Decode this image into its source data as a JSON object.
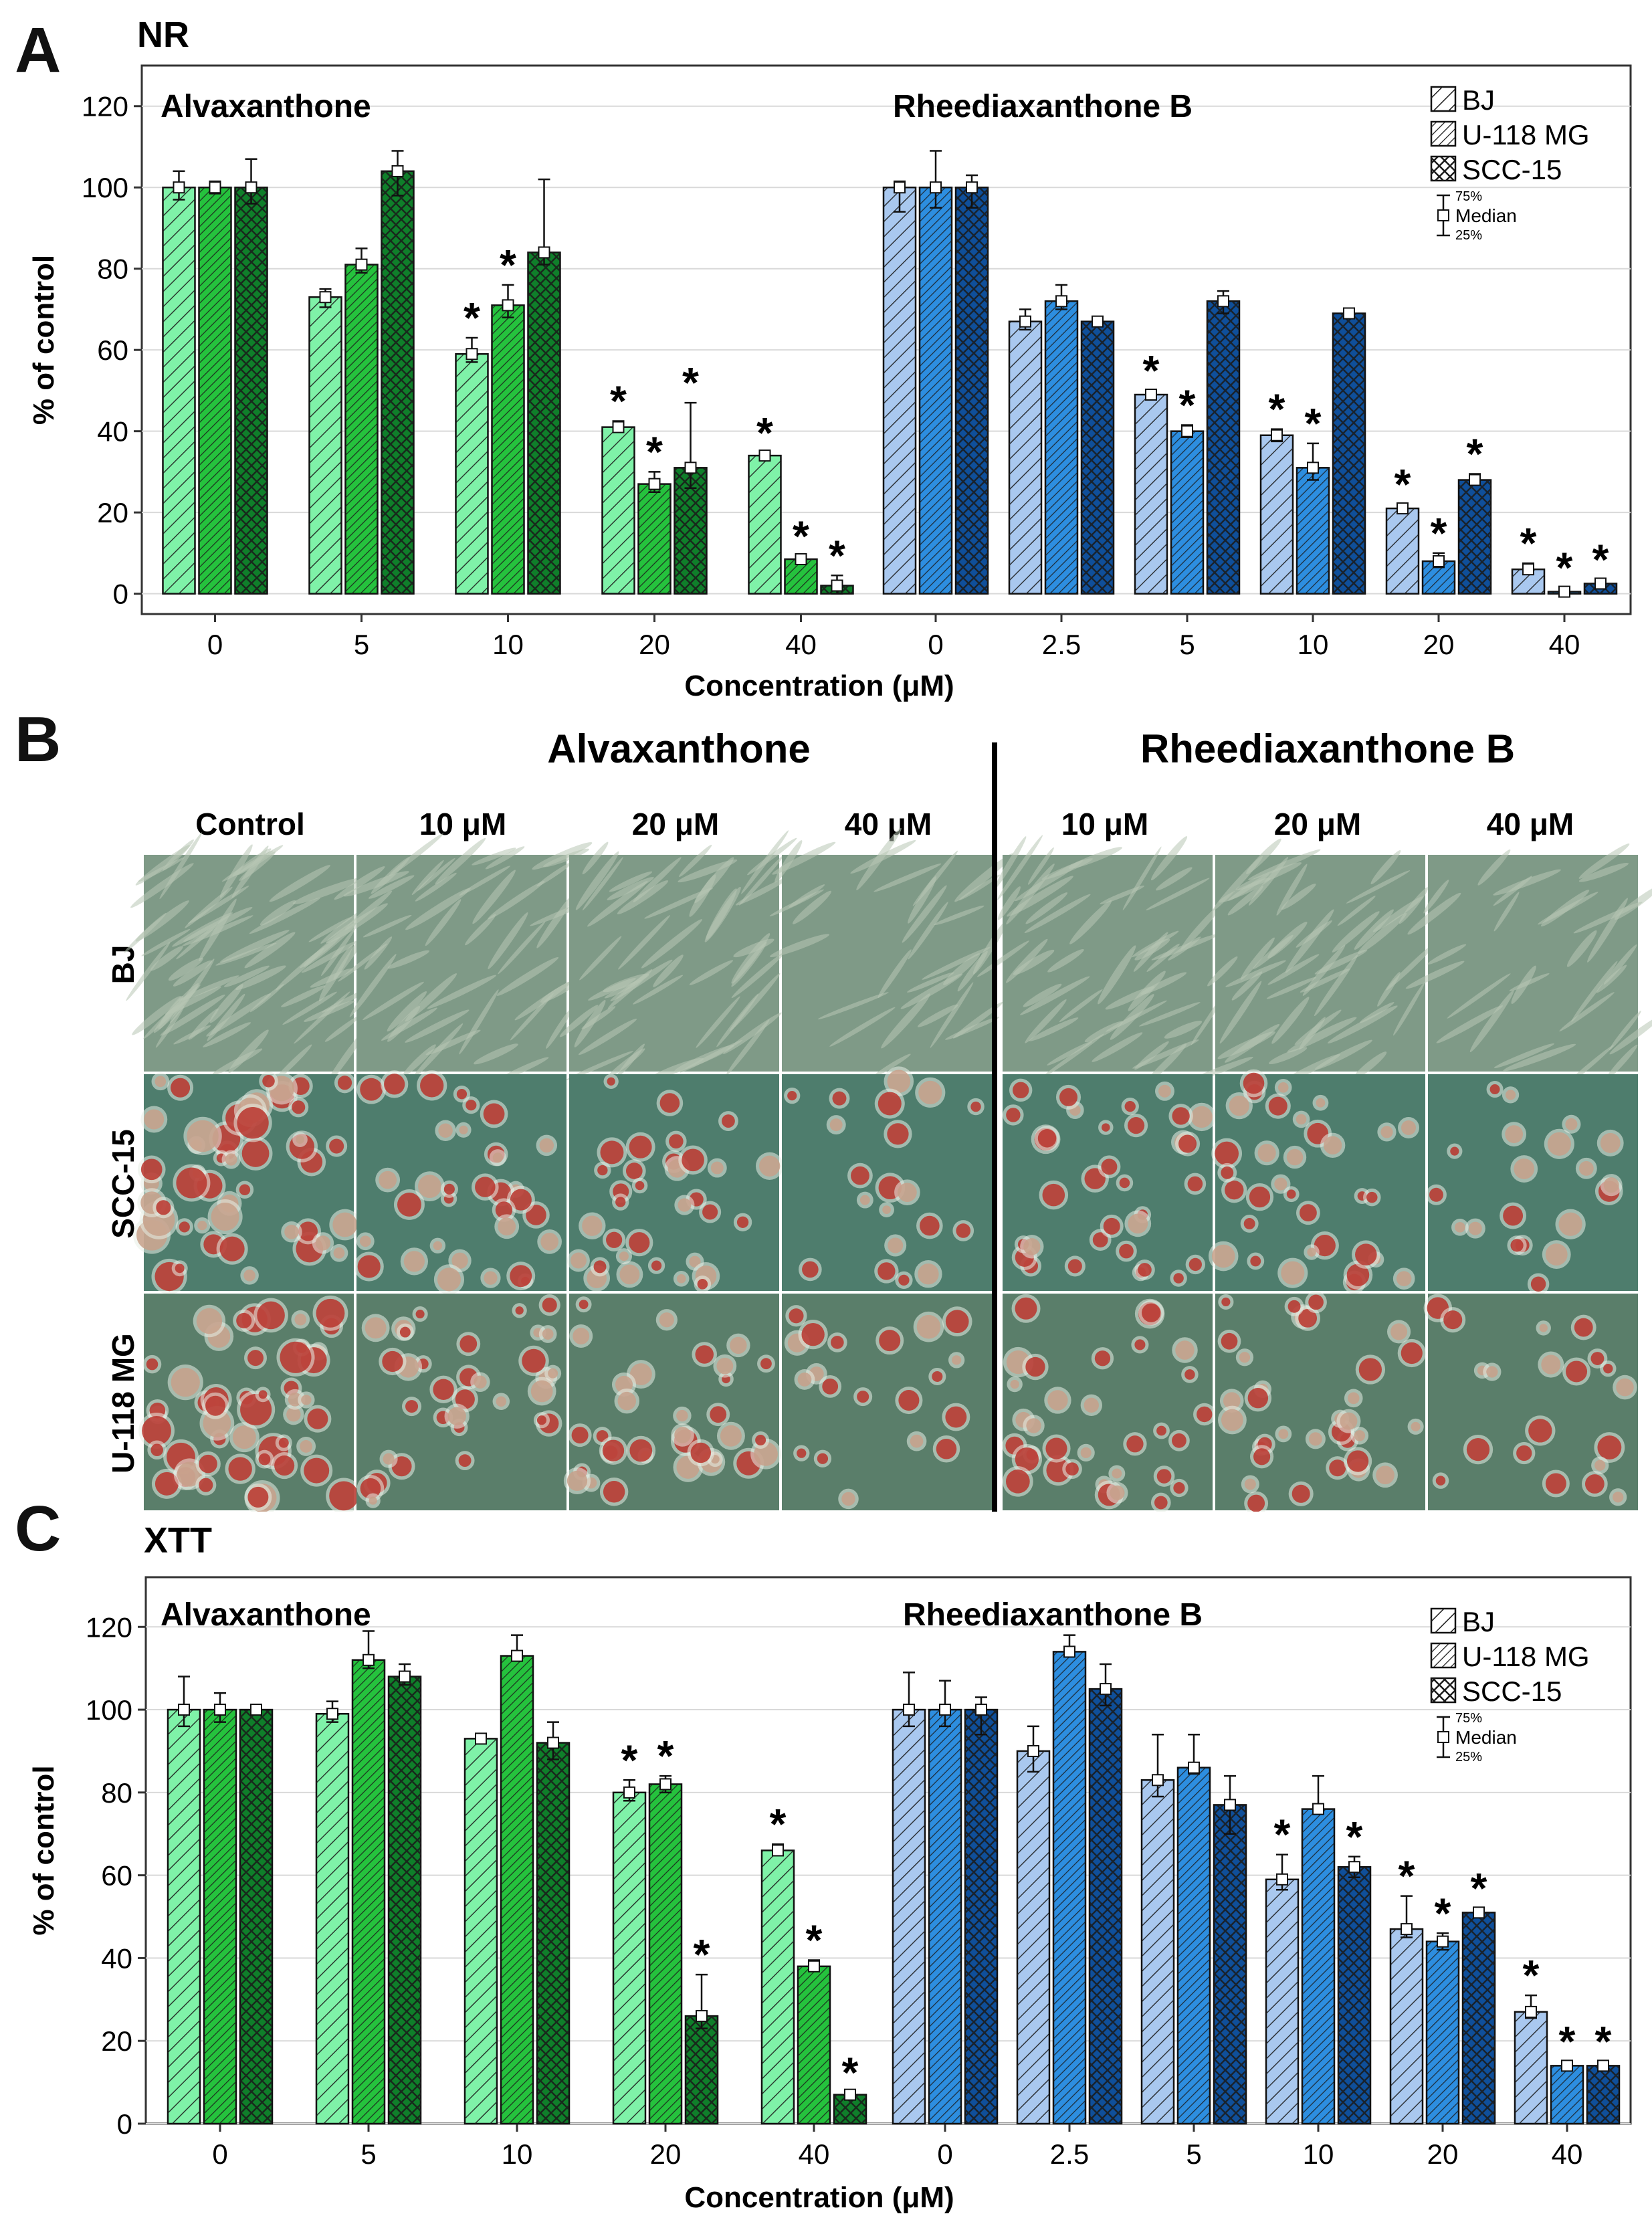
{
  "colors": {
    "bj_alv": "#7ff2a8",
    "u118_alv": "#25c23d",
    "scc_alv": "#0f7f2a",
    "bj_rhe": "#a9c8ef",
    "u118_rhe": "#2d8ee0",
    "scc_rhe": "#0f4f9a",
    "grid": "#d9d9d9",
    "axis": "#222222"
  },
  "panels": {
    "a": "A",
    "b": "B",
    "c": "C"
  },
  "panel_b": {
    "group_alv": "Alvaxanthone",
    "group_rhe": "Rheediaxanthone B",
    "columns": [
      "Control",
      "10 μM",
      "20 μM",
      "40 μM",
      "10 μM",
      "20 μM",
      "40 μM"
    ],
    "rows": [
      "BJ",
      "SCC-15",
      "U-118 MG"
    ]
  },
  "chart_data": [
    {
      "id": "NR",
      "type": "bar",
      "title": "NR",
      "ylabel": "% of control",
      "xlabel": "Concentration (μM)",
      "ylim": [
        -5,
        130
      ],
      "yticks": [
        0,
        20,
        40,
        60,
        80,
        100,
        120
      ],
      "grid": true,
      "legend_position": "top-right",
      "legend": [
        "BJ",
        "U-118 MG",
        "SCC-15"
      ],
      "legend_box": {
        "top": "75%",
        "mid": "Median",
        "bottom": "25%"
      },
      "series_names": [
        "BJ",
        "U-118 MG",
        "SCC-15"
      ],
      "groups": [
        {
          "name": "Alvaxanthone",
          "categories": [
            "0",
            "5",
            "10",
            "20",
            "40"
          ],
          "values": [
            [
              100,
              100,
              100
            ],
            [
              73,
              81,
              104
            ],
            [
              59,
              71,
              84
            ],
            [
              41,
              27,
              31
            ],
            [
              34,
              8.5,
              2
            ]
          ],
          "err_low": [
            [
              3,
              1.5,
              4
            ],
            [
              2.5,
              2,
              6
            ],
            [
              2,
              3,
              3
            ],
            [
              1,
              2,
              5
            ],
            [
              0.7,
              0.7,
              2
            ]
          ],
          "err_high": [
            [
              4,
              1.5,
              7
            ],
            [
              2,
              4,
              5
            ],
            [
              4,
              5,
              18
            ],
            [
              1.5,
              3,
              16
            ],
            [
              0.7,
              0.7,
              2.5
            ]
          ],
          "significant": [
            [
              false,
              false,
              false
            ],
            [
              false,
              false,
              false
            ],
            [
              true,
              true,
              false
            ],
            [
              true,
              true,
              true
            ],
            [
              true,
              true,
              true
            ]
          ]
        },
        {
          "name": "Rheediaxanthone B",
          "categories": [
            "0",
            "2.5",
            "5",
            "10",
            "20",
            "40"
          ],
          "values": [
            [
              100,
              100,
              100
            ],
            [
              67,
              72,
              67
            ],
            [
              49,
              40,
              72
            ],
            [
              39,
              31,
              69
            ],
            [
              21,
              8,
              28
            ],
            [
              6,
              0.5,
              2.5
            ]
          ],
          "err_low": [
            [
              6,
              5,
              5
            ],
            [
              2,
              2,
              1
            ],
            [
              1,
              1.5,
              3
            ],
            [
              1.5,
              3,
              1
            ],
            [
              1,
              1.5,
              1
            ],
            [
              1,
              0.5,
              1
            ]
          ],
          "err_high": [
            [
              1.5,
              9,
              3
            ],
            [
              3,
              4,
              1
            ],
            [
              1,
              1.5,
              2.5
            ],
            [
              1.5,
              6,
              1
            ],
            [
              1,
              2,
              1.5
            ],
            [
              1.5,
              1,
              1
            ]
          ],
          "significant": [
            [
              false,
              false,
              false
            ],
            [
              false,
              false,
              false
            ],
            [
              true,
              true,
              false
            ],
            [
              true,
              true,
              false
            ],
            [
              true,
              true,
              true
            ],
            [
              true,
              true,
              true
            ]
          ]
        }
      ]
    },
    {
      "id": "XTT",
      "type": "bar",
      "title": "XTT",
      "ylabel": "% of control",
      "xlabel": "Concentration (μM)",
      "ylim": [
        0,
        132
      ],
      "yticks": [
        0,
        20,
        40,
        60,
        80,
        100,
        120
      ],
      "grid": true,
      "legend_position": "top-right",
      "legend": [
        "BJ",
        "U-118 MG",
        "SCC-15"
      ],
      "legend_box": {
        "top": "75%",
        "mid": "Median",
        "bottom": "25%"
      },
      "series_names": [
        "BJ",
        "U-118 MG",
        "SCC-15"
      ],
      "groups": [
        {
          "name": "Alvaxanthone",
          "categories": [
            "0",
            "5",
            "10",
            "20",
            "40"
          ],
          "values": [
            [
              100,
              100,
              100
            ],
            [
              99,
              112,
              108
            ],
            [
              93,
              113,
              92
            ],
            [
              80,
              82,
              26
            ],
            [
              66,
              38,
              7
            ]
          ],
          "err_low": [
            [
              4,
              3,
              1
            ],
            [
              2,
              2,
              2
            ],
            [
              1,
              1,
              4
            ],
            [
              2,
              2,
              3
            ],
            [
              1,
              1,
              0.5
            ]
          ],
          "err_high": [
            [
              8,
              4,
              1
            ],
            [
              3,
              7,
              3
            ],
            [
              1,
              5,
              5
            ],
            [
              3,
              2,
              10
            ],
            [
              1.5,
              1.5,
              0.5
            ]
          ],
          "significant": [
            [
              false,
              false,
              false
            ],
            [
              false,
              false,
              false
            ],
            [
              false,
              false,
              false
            ],
            [
              true,
              true,
              true
            ],
            [
              true,
              true,
              true
            ]
          ]
        },
        {
          "name": "Rheediaxanthone B",
          "categories": [
            "0",
            "2.5",
            "5",
            "10",
            "20",
            "40"
          ],
          "values": [
            [
              100,
              100,
              100
            ],
            [
              90,
              114,
              105
            ],
            [
              83,
              86,
              77
            ],
            [
              59,
              76,
              62
            ],
            [
              47,
              44,
              51
            ],
            [
              27,
              14,
              14
            ]
          ],
          "err_low": [
            [
              4,
              4,
              6
            ],
            [
              5,
              1,
              4
            ],
            [
              4,
              1.5,
              7
            ],
            [
              2.5,
              1,
              2.5
            ],
            [
              2,
              2,
              1
            ],
            [
              1.5,
              1,
              1
            ]
          ],
          "err_high": [
            [
              9,
              7,
              3
            ],
            [
              6,
              4,
              6
            ],
            [
              11,
              8,
              7
            ],
            [
              6,
              8,
              2.5
            ],
            [
              8,
              2,
              1
            ],
            [
              4,
              1,
              1
            ]
          ],
          "significant": [
            [
              false,
              false,
              false
            ],
            [
              false,
              false,
              false
            ],
            [
              false,
              false,
              false
            ],
            [
              true,
              false,
              true
            ],
            [
              true,
              true,
              true
            ],
            [
              true,
              true,
              true
            ]
          ]
        }
      ]
    }
  ]
}
